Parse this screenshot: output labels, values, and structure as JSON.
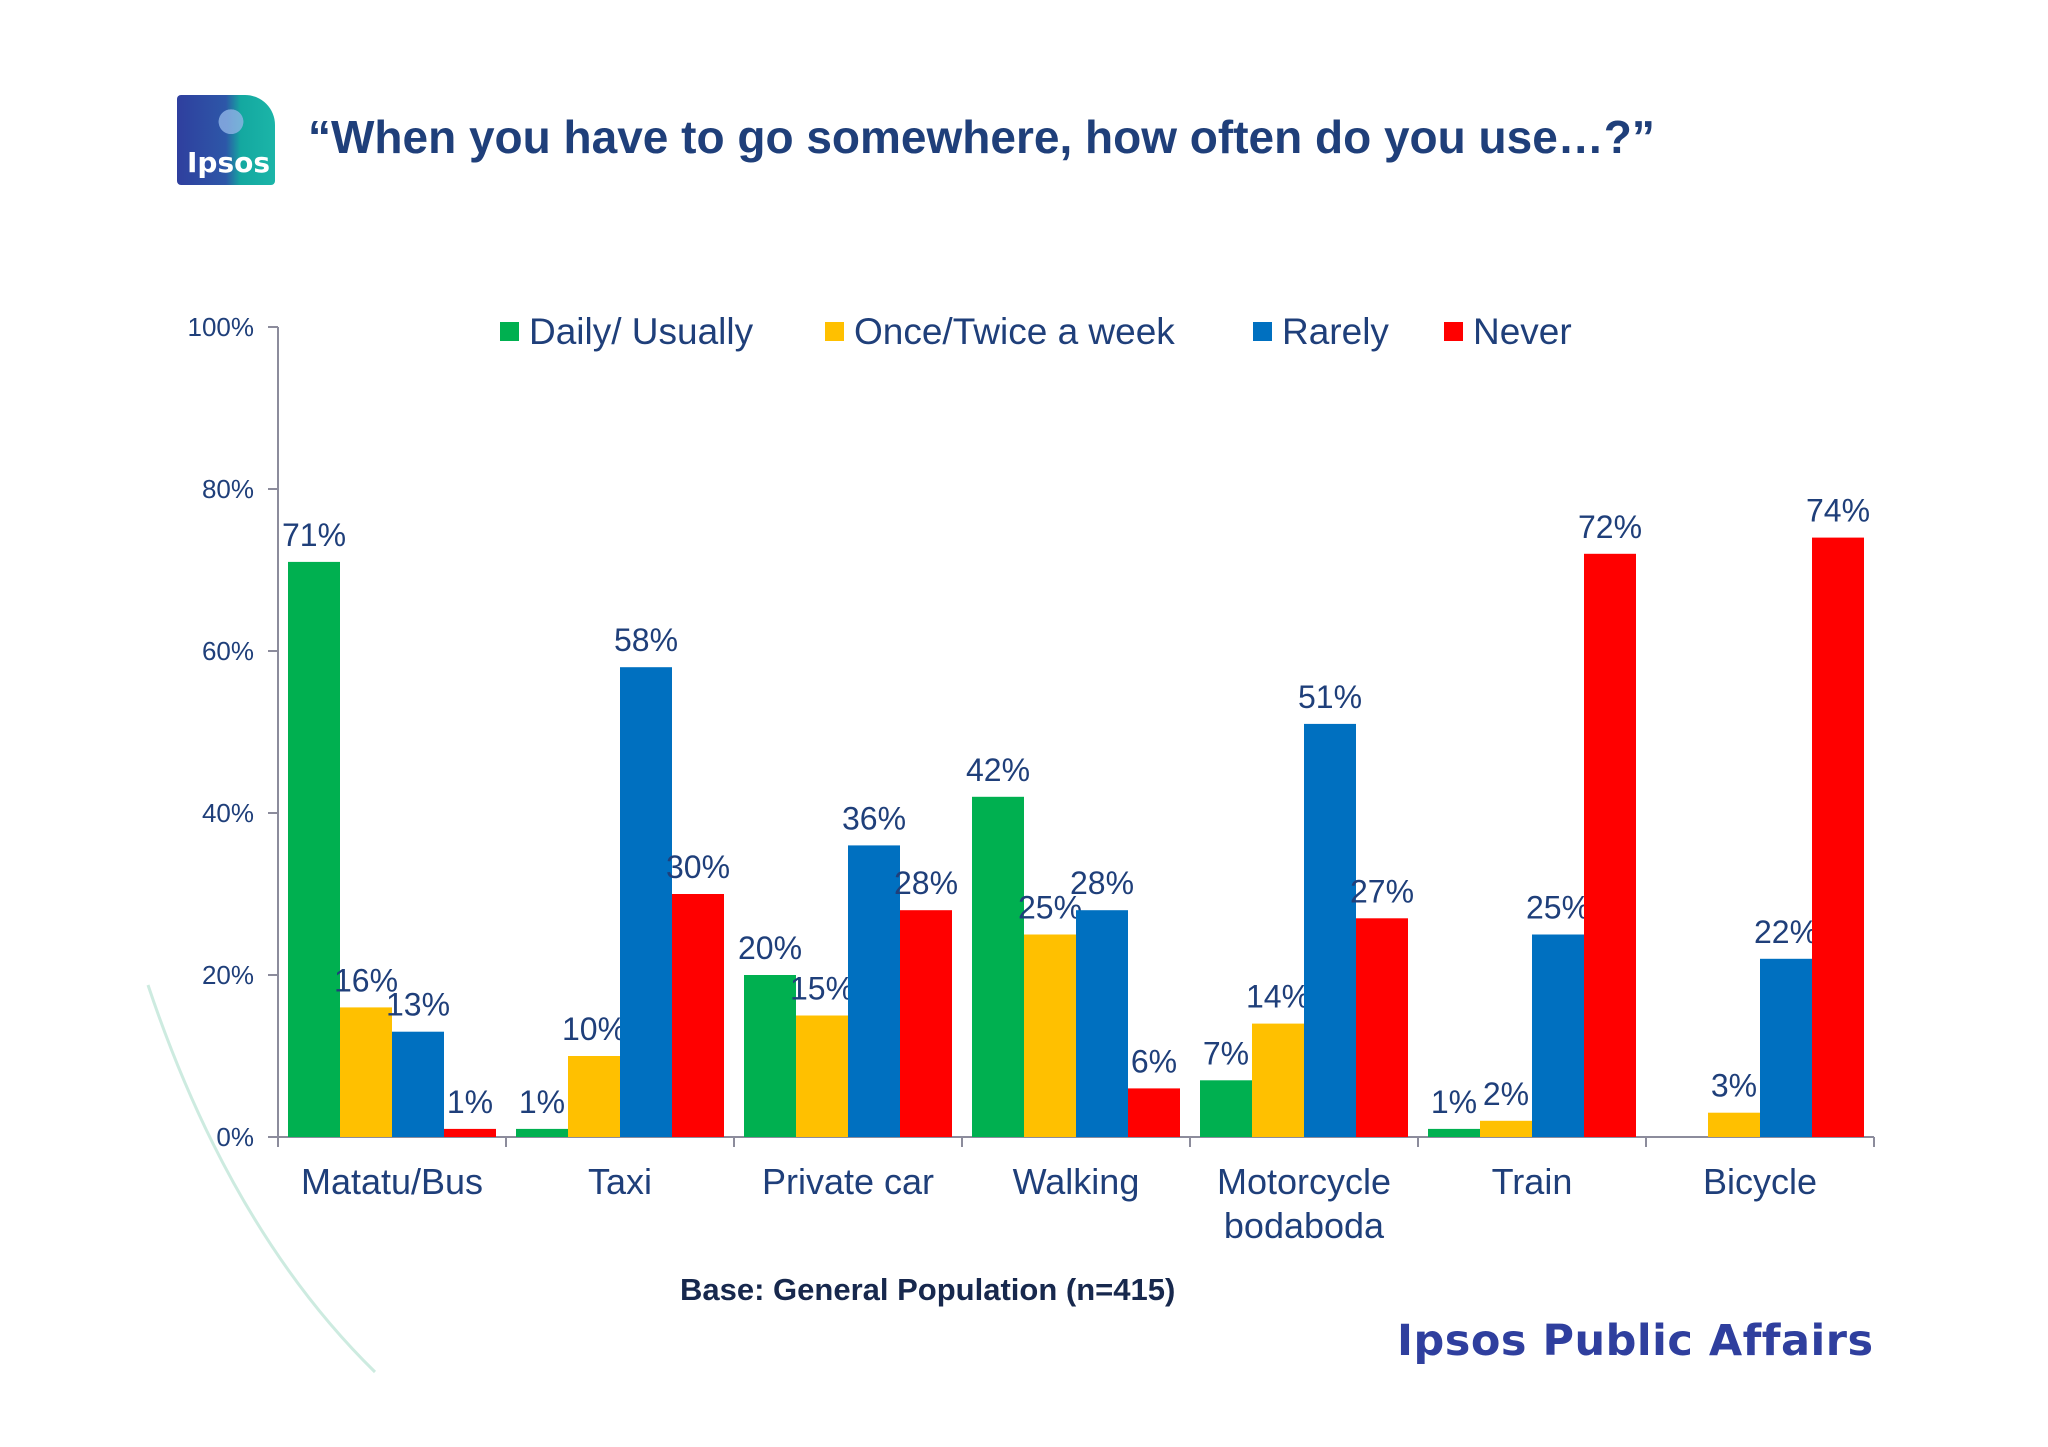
{
  "header": {
    "logo_text": "Ipsos",
    "title": "“When you have to go somewhere, how often do you use…?”"
  },
  "footer": {
    "base_note": "Base: General Population (n=415)",
    "brand": "Ipsos Public Affairs"
  },
  "chart_data": {
    "type": "bar",
    "title": "“When you have to go somewhere, how often do you use…?”",
    "xlabel": "",
    "ylabel": "",
    "ylim": [
      0,
      100
    ],
    "yticks": [
      "0%",
      "20%",
      "40%",
      "60%",
      "80%",
      "100%"
    ],
    "grid": false,
    "legend_position": "top",
    "categories": [
      [
        "Matatu/Bus"
      ],
      [
        "Taxi"
      ],
      [
        "Private car"
      ],
      [
        "Walking"
      ],
      [
        "Motorcycle",
        "bodaboda"
      ],
      [
        "Train"
      ],
      [
        "Bicycle"
      ]
    ],
    "series": [
      {
        "name": "Daily/ Usually",
        "color": "#00b050",
        "values": [
          71,
          1,
          20,
          42,
          7,
          1,
          null
        ],
        "labels": [
          "71%",
          "1%",
          "20%",
          "42%",
          "7%",
          "1%",
          ""
        ]
      },
      {
        "name": "Once/Twice a week",
        "color": "#ffc000",
        "values": [
          16,
          10,
          15,
          25,
          14,
          2,
          3
        ],
        "labels": [
          "16%",
          "10%",
          "15%",
          "25%",
          "14%",
          "2%",
          "3%"
        ]
      },
      {
        "name": "Rarely",
        "color": "#0070c0",
        "values": [
          13,
          58,
          36,
          28,
          51,
          25,
          22
        ],
        "labels": [
          "13%",
          "58%",
          "36%",
          "28%",
          "51%",
          "25%",
          "22%"
        ]
      },
      {
        "name": "Never",
        "color": "#ff0000",
        "values": [
          1,
          30,
          28,
          6,
          27,
          72,
          74
        ],
        "labels": [
          "1%",
          "30%",
          "28%",
          "6%",
          "27%",
          "72%",
          "74%"
        ]
      }
    ]
  }
}
